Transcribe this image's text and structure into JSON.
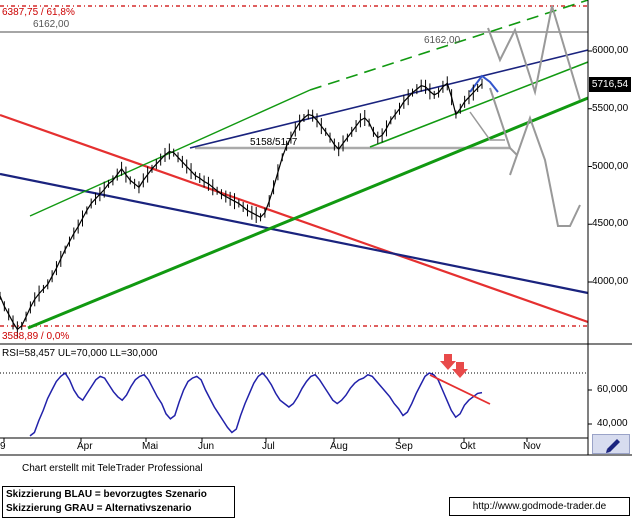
{
  "colors": {
    "price": "#000000",
    "blue": "#1a237e",
    "red": "#e53030",
    "green": "#119911",
    "grey": "#999999",
    "fibo": "#cc0000",
    "rsi": "#2222aa",
    "rsi_sell_arrow": "#e84a4a",
    "current_price_box": "#000000"
  },
  "price_axis": {
    "ticks": [
      "6000,00",
      "5500,00",
      "5000,00",
      "4500,00",
      "4000,00"
    ],
    "current_value": "5716,54"
  },
  "rsi_axis": {
    "ticks": [
      "60,000",
      "40,000"
    ]
  },
  "rsi_label": "RSI=58,457 UL=70,000 LL=30,000",
  "time_axis": {
    "ticks": [
      "9",
      "Apr",
      "Mai",
      "Jun",
      "Jul",
      "Aug",
      "Sep",
      "Okt",
      "Nov"
    ]
  },
  "annotations": {
    "fibo_top": "6387,75 / 61,8%",
    "level_6162_left": "6162,00",
    "level_6162_right": "6162,00",
    "level_5158": "5158/5177",
    "fibo_bottom": "3588,89 / 0,0%"
  },
  "footer": {
    "created_with": "Chart erstellt mit TeleTrader Professional",
    "legend_line1": "Skizzierung BLAU = bevorzugtes Szenario",
    "legend_line2": "Skizzierung GRAU = Alternativszenario",
    "url": "http://www.godmode-trader.de"
  },
  "toolbar": {
    "pen_icon": "pen-icon"
  },
  "chart_data": {
    "type": "line",
    "y_range": [
      3540,
      6420
    ],
    "x_labels": [
      "9",
      "Apr",
      "Mai",
      "Jun",
      "Jul",
      "Aug",
      "Sep",
      "Okt",
      "Nov"
    ],
    "price_path": [
      3880,
      3790,
      3720,
      3650,
      3590,
      3620,
      3700,
      3780,
      3850,
      3900,
      3940,
      3980,
      4050,
      4120,
      4200,
      4280,
      4350,
      4420,
      4480,
      4550,
      4620,
      4680,
      4720,
      4760,
      4800,
      4850,
      4880,
      4930,
      4980,
      4930,
      4880,
      4850,
      4820,
      4880,
      4930,
      4980,
      5020,
      5060,
      5100,
      5130,
      5120,
      5080,
      5040,
      5000,
      4960,
      4920,
      4900,
      4870,
      4850,
      4820,
      4790,
      4760,
      4740,
      4720,
      4700,
      4680,
      4650,
      4620,
      4600,
      4580,
      4560,
      4600,
      4700,
      4820,
      4950,
      5080,
      5180,
      5250,
      5320,
      5380,
      5420,
      5450,
      5440,
      5400,
      5350,
      5300,
      5250,
      5190,
      5150,
      5200,
      5250,
      5300,
      5350,
      5400,
      5420,
      5380,
      5300,
      5250,
      5270,
      5330,
      5400,
      5450,
      5500,
      5560,
      5600,
      5640,
      5670,
      5700,
      5690,
      5650,
      5620,
      5640,
      5690,
      5720,
      5600,
      5450,
      5500,
      5560,
      5600,
      5640,
      5680,
      5716.54
    ],
    "rsi_path": [
      33,
      35,
      42,
      48,
      55,
      60,
      65,
      68,
      70,
      66,
      60,
      56,
      54,
      58,
      62,
      66,
      68,
      67,
      63,
      59,
      56,
      54,
      57,
      62,
      66,
      68,
      69,
      66,
      61,
      56,
      52,
      46,
      43,
      45,
      53,
      60,
      65,
      67,
      68,
      66,
      60,
      55,
      50,
      46,
      42,
      38,
      35,
      37,
      45,
      52,
      58,
      64,
      68,
      70,
      67,
      63,
      58,
      54,
      52,
      50,
      52,
      56,
      61,
      65,
      68,
      69,
      66,
      62,
      58,
      54,
      52,
      54,
      57,
      61,
      64,
      66,
      67,
      69,
      68,
      65,
      62,
      59,
      56,
      52,
      49,
      45,
      47,
      52,
      58,
      63,
      68,
      70,
      69,
      66,
      60,
      54,
      48,
      44,
      46,
      51,
      54,
      56,
      58,
      58.457
    ]
  }
}
